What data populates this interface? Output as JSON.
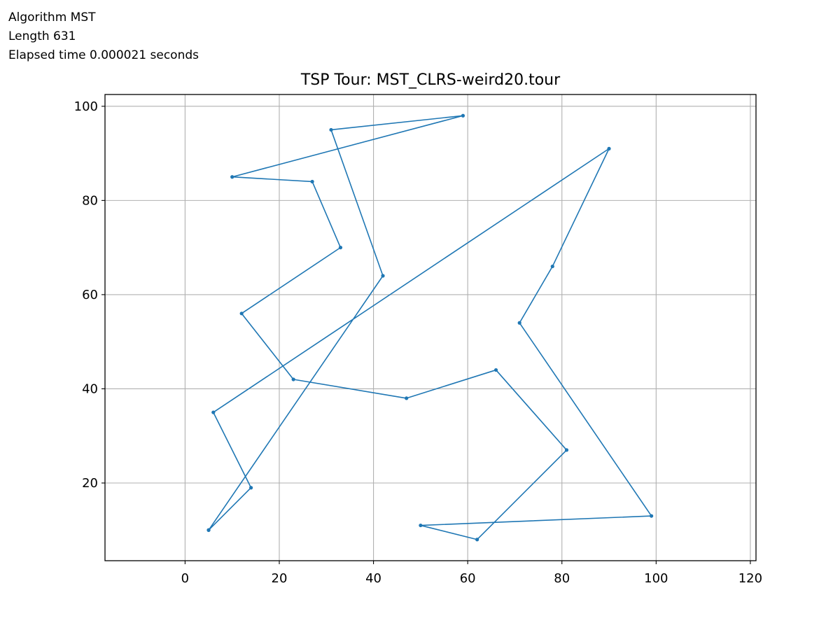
{
  "info": {
    "algorithm": "Algorithm MST",
    "length": "Length 631",
    "elapsed": "Elapsed time 0.000021 seconds"
  },
  "chart_data": {
    "type": "line",
    "title": "TSP Tour: MST_CLRS-weird20.tour",
    "xlabel": "",
    "ylabel": "",
    "xlim": [
      -17,
      121.2
    ],
    "ylim": [
      3.5,
      102.5
    ],
    "x_ticks": [
      0,
      20,
      40,
      60,
      80,
      100,
      120
    ],
    "y_ticks": [
      20,
      40,
      60,
      80,
      100
    ],
    "grid": true,
    "line_color": "#1f77b4",
    "series": [
      {
        "points": [
          [
            5,
            10
          ],
          [
            14,
            19
          ],
          [
            6,
            35
          ],
          [
            90,
            91
          ],
          [
            78,
            66
          ],
          [
            71,
            54
          ],
          [
            99,
            13
          ],
          [
            50,
            11
          ],
          [
            62,
            8
          ],
          [
            81,
            27
          ],
          [
            66,
            44
          ],
          [
            47,
            38
          ],
          [
            23,
            42
          ],
          [
            12,
            56
          ],
          [
            33,
            70
          ],
          [
            27,
            84
          ],
          [
            10,
            85
          ],
          [
            59,
            98
          ],
          [
            31,
            95
          ],
          [
            42,
            64
          ],
          [
            5,
            10
          ]
        ]
      }
    ]
  }
}
